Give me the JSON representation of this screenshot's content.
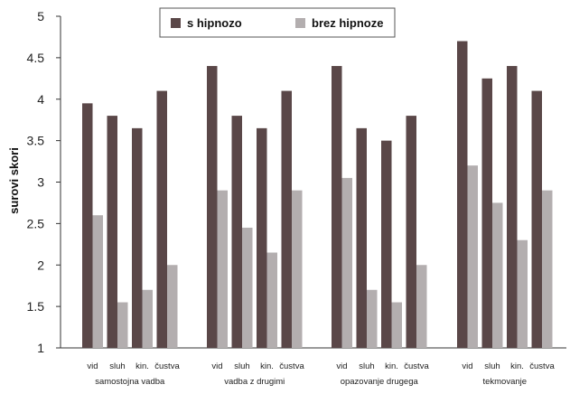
{
  "chart_data": {
    "type": "bar",
    "ylabel": "surovi skori",
    "ylim": [
      1,
      5
    ],
    "yticks": [
      "1",
      "1.5",
      "2",
      "2.5",
      "3",
      "3.5",
      "4",
      "4.5",
      "5"
    ],
    "groups": [
      {
        "label": "samostojna vadba",
        "categories": [
          "vid",
          "sluh",
          "kin.",
          "čustva"
        ]
      },
      {
        "label": "vadba z drugimi",
        "categories": [
          "vid",
          "sluh",
          "kin.",
          "čustva"
        ]
      },
      {
        "label": "opazovanje drugega",
        "categories": [
          "vid",
          "sluh",
          "kin.",
          "čustva"
        ]
      },
      {
        "label": "tekmovanje",
        "categories": [
          "vid",
          "sluh",
          "kin.",
          "čustva"
        ]
      }
    ],
    "series": [
      {
        "name": "s hipnozo",
        "color": "#5a4748",
        "values": [
          3.95,
          3.8,
          3.65,
          4.1,
          4.4,
          3.8,
          3.65,
          4.1,
          4.4,
          3.65,
          3.5,
          3.8,
          4.7,
          4.25,
          4.4,
          4.1
        ]
      },
      {
        "name": "brez hipnoze",
        "color": "#b3aeaf",
        "values": [
          2.6,
          1.55,
          1.7,
          2.0,
          2.9,
          2.45,
          2.15,
          2.9,
          3.05,
          1.7,
          1.55,
          2.0,
          3.2,
          2.75,
          2.3,
          2.9
        ]
      }
    ],
    "legend": "top-center",
    "grid": false
  }
}
